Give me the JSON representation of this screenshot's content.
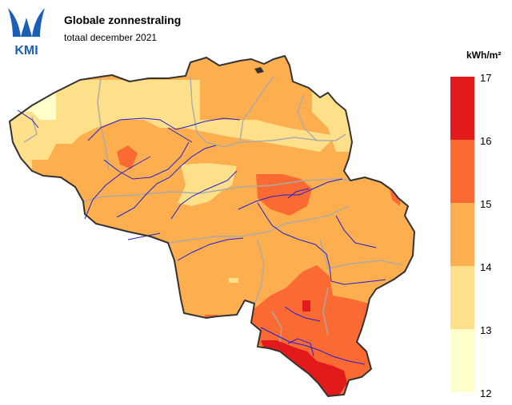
{
  "header": {
    "logo_text": "KMI",
    "title": "Globale zonnestraling",
    "subtitle": "totaal december 2021"
  },
  "legend": {
    "unit": "kWh/m²",
    "ticks": [
      "17",
      "16",
      "15",
      "14",
      "13",
      "12"
    ],
    "classes": [
      {
        "range": [
          16,
          17
        ],
        "color": "#e31a1c"
      },
      {
        "range": [
          15,
          16
        ],
        "color": "#fc6a34"
      },
      {
        "range": [
          14,
          15
        ],
        "color": "#fdae4f"
      },
      {
        "range": [
          13,
          14
        ],
        "color": "#fee08b"
      },
      {
        "range": [
          12,
          13
        ],
        "color": "#ffffcc"
      }
    ]
  },
  "colors": {
    "border": "#333333",
    "provinces": "#aaaaaa",
    "rivers": "#1f1fd6"
  }
}
